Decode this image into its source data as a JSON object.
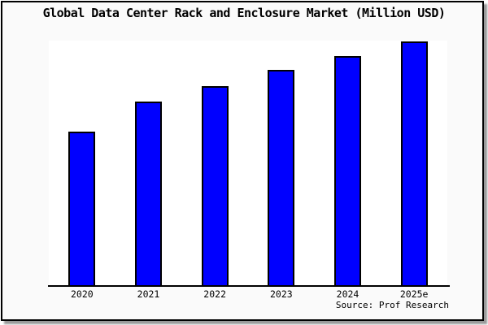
{
  "window": {
    "frame_background": "#fafafa",
    "frame_border_color": "#000000",
    "shadow_color": "#999999"
  },
  "chart_data": {
    "type": "bar",
    "title": "Global Data Center Rack and Enclosure Market (Million USD)",
    "categories": [
      "2020",
      "2021",
      "2022",
      "2023",
      "2024",
      "2025e"
    ],
    "values": [
      63.0,
      75.2,
      81.5,
      88.1,
      93.7,
      99.7
    ],
    "value_note": "no y-axis ticks or gridlines shown; values estimated as percent of plot height with 2025e as maximum",
    "xlabel": "",
    "ylabel": "",
    "ylim": [
      0,
      100
    ],
    "grid": false,
    "legend": null,
    "bar_color": "#0000ff",
    "bar_border_color": "#000000",
    "plot_background": "#ffffff",
    "source_label": "Source: Prof Research"
  }
}
